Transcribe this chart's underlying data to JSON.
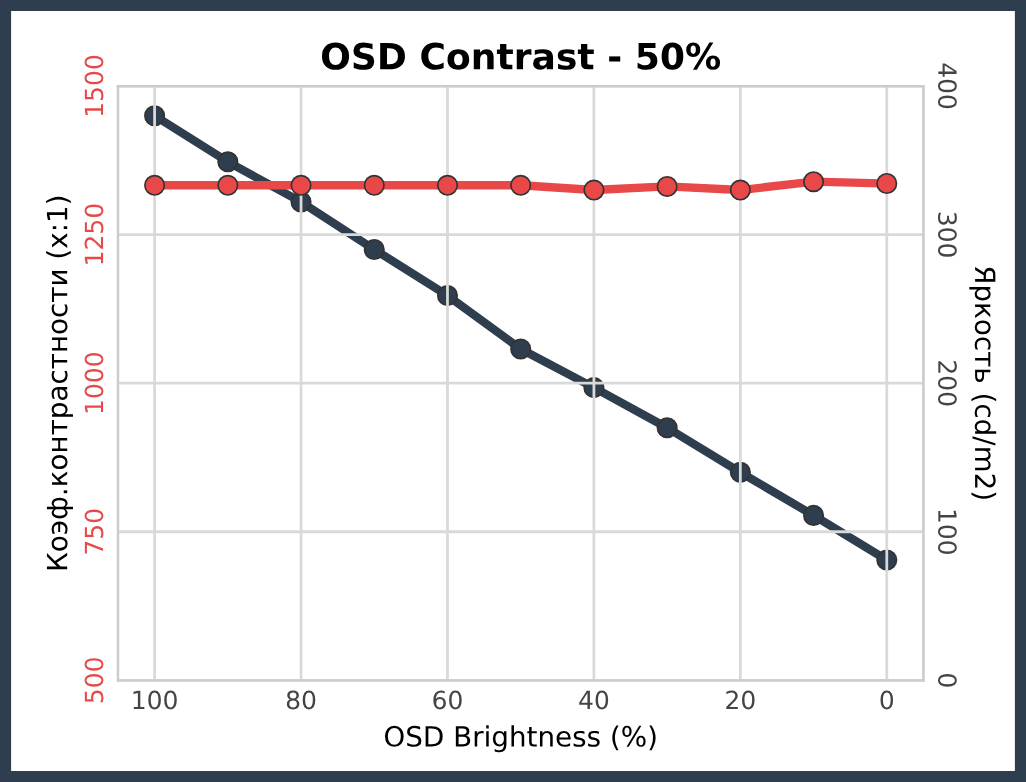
{
  "chart_data": {
    "type": "line",
    "title": "OSD Contrast - 50%",
    "xlabel": "OSD Brightness (%)",
    "ylabel": "Коэф.контрастности (x:1)",
    "y2label": "Яркость (cd/m2)",
    "x": [
      100,
      90,
      80,
      70,
      60,
      50,
      40,
      30,
      20,
      10,
      0
    ],
    "xlim": [
      105,
      -5
    ],
    "xticks": [
      100,
      80,
      60,
      40,
      20,
      0
    ],
    "ylim": [
      500,
      1500
    ],
    "yticks": [
      500,
      750,
      1000,
      1250,
      1500
    ],
    "y2lim": [
      0,
      400
    ],
    "y2ticks": [
      0,
      100,
      200,
      300,
      400
    ],
    "grid": true,
    "legend": false,
    "marker": "circle",
    "line_style": "solid",
    "series": [
      {
        "color": "#e84848",
        "values": [
          1333,
          1333,
          1333,
          1333,
          1333,
          1333,
          1325,
          1331,
          1325,
          1339,
          1336
        ]
      },
      {
        "color": "#2e3e4e",
        "axis": "y2",
        "values": [
          380,
          349,
          322,
          290,
          259,
          223,
          197,
          170,
          140,
          111,
          81
        ]
      }
    ]
  }
}
